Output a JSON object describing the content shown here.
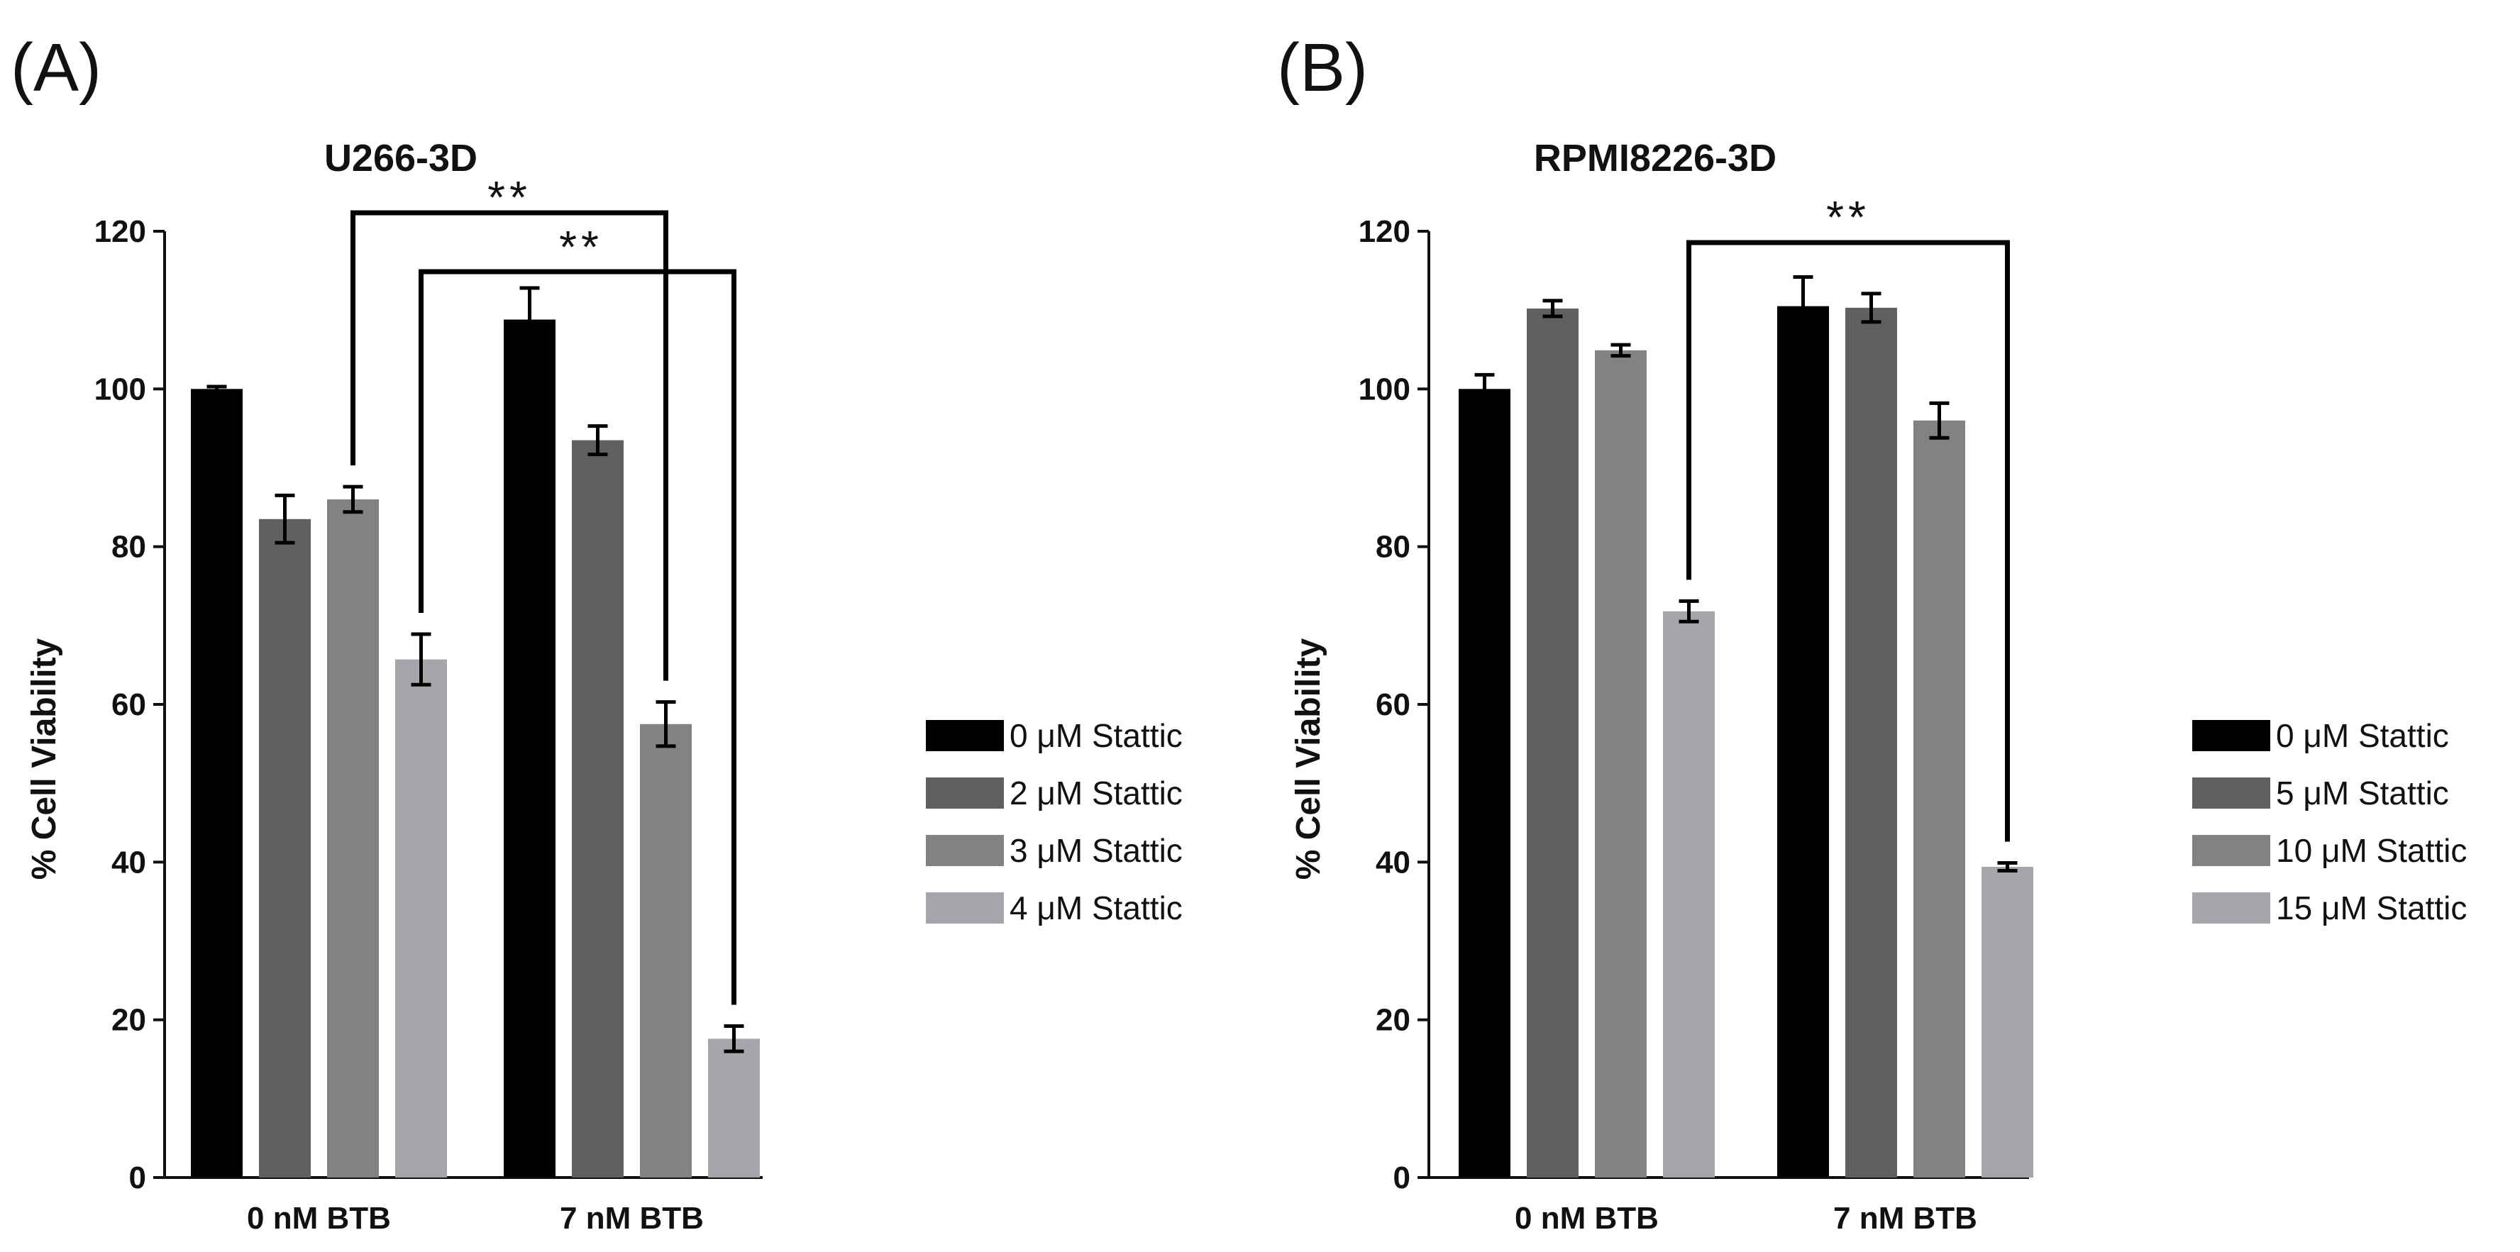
{
  "chart_data": [
    {
      "type": "bar",
      "panel_label": "(A)",
      "title": "U266-3D",
      "xlabel": "",
      "ylabel": "% Cell Viability",
      "ylim": [
        0,
        120
      ],
      "yticks": [
        "0",
        "20",
        "40",
        "60",
        "80",
        "100",
        "120"
      ],
      "categories": [
        "0 nM BTB",
        "7 nM BTB"
      ],
      "series": [
        {
          "name": "0 μM Stattic",
          "color": "#000000",
          "values": [
            100,
            108.8
          ],
          "errors": [
            0.3,
            4.0
          ]
        },
        {
          "name": "2 μM Stattic",
          "color": "#606060",
          "values": [
            83.5,
            93.5
          ],
          "errors": [
            3.0,
            1.8
          ]
        },
        {
          "name": "3 μM Stattic",
          "color": "#828282",
          "values": [
            86.0,
            57.5
          ],
          "errors": [
            1.6,
            2.8
          ]
        },
        {
          "name": "4 μM Stattic",
          "color": "#a6a6aa",
          "values": [
            65.7,
            17.6
          ],
          "errors": [
            3.2,
            1.6
          ]
        }
      ],
      "significance": [
        {
          "label": "**",
          "from": {
            "category": 0,
            "series": 2
          },
          "to": {
            "category": 1,
            "series": 2
          }
        },
        {
          "label": "**",
          "from": {
            "category": 0,
            "series": 3
          },
          "to": {
            "category": 1,
            "series": 3
          }
        }
      ],
      "legend": "right"
    },
    {
      "type": "bar",
      "panel_label": "(B)",
      "title": "RPMI8226-3D",
      "xlabel": "",
      "ylabel": "% Cell Viability",
      "ylim": [
        0,
        120
      ],
      "yticks": [
        "0",
        "20",
        "40",
        "60",
        "80",
        "100",
        "120"
      ],
      "categories": [
        "0 nM BTB",
        "7 nM BTB"
      ],
      "series": [
        {
          "name": "0 μM Stattic",
          "color": "#000000",
          "values": [
            100,
            110.5
          ],
          "errors": [
            1.8,
            3.7
          ]
        },
        {
          "name": "5 μM Stattic",
          "color": "#606060",
          "values": [
            110.2,
            110.3
          ],
          "errors": [
            1.0,
            1.8
          ]
        },
        {
          "name": "10 μM Stattic",
          "color": "#828282",
          "values": [
            104.9,
            96.0
          ],
          "errors": [
            0.7,
            2.2
          ]
        },
        {
          "name": "15 μM Stattic",
          "color": "#a6a6aa",
          "values": [
            71.8,
            39.4
          ],
          "errors": [
            1.3,
            0.5
          ]
        }
      ],
      "significance": [
        {
          "label": "**",
          "from": {
            "category": 0,
            "series": 3
          },
          "to": {
            "category": 1,
            "series": 3
          }
        }
      ],
      "legend": "right"
    }
  ]
}
